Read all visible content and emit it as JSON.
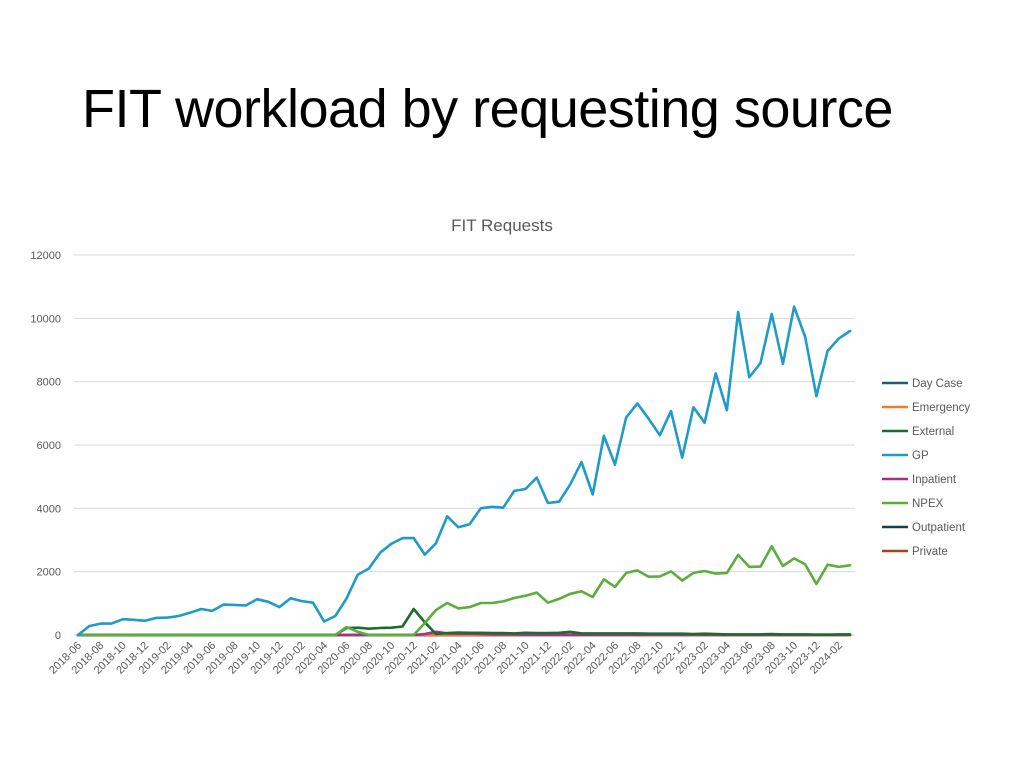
{
  "slide": {
    "title": "FIT workload by requesting source"
  },
  "chart_data": {
    "type": "line",
    "title": "FIT Requests",
    "xlabel": "",
    "ylabel": "",
    "ylim": [
      0,
      12000
    ],
    "yticks": [
      0,
      2000,
      4000,
      6000,
      8000,
      10000,
      12000
    ],
    "grid": true,
    "legend": "right",
    "x": [
      "2018-06",
      "2018-07",
      "2018-08",
      "2018-09",
      "2018-10",
      "2018-11",
      "2018-12",
      "2019-01",
      "2019-02",
      "2019-03",
      "2019-04",
      "2019-05",
      "2019-06",
      "2019-07",
      "2019-08",
      "2019-09",
      "2019-10",
      "2019-11",
      "2019-12",
      "2020-01",
      "2020-02",
      "2020-03",
      "2020-04",
      "2020-05",
      "2020-06",
      "2020-07",
      "2020-08",
      "2020-09",
      "2020-10",
      "2020-11",
      "2020-12",
      "2021-01",
      "2021-02",
      "2021-03",
      "2021-04",
      "2021-05",
      "2021-06",
      "2021-07",
      "2021-08",
      "2021-09",
      "2021-10",
      "2021-11",
      "2021-12",
      "2022-01",
      "2022-02",
      "2022-03",
      "2022-04",
      "2022-05",
      "2022-06",
      "2022-07",
      "2022-08",
      "2022-09",
      "2022-10",
      "2022-11",
      "2022-12",
      "2023-01",
      "2023-02",
      "2023-03",
      "2023-04",
      "2023-05",
      "2023-06",
      "2023-07",
      "2023-08",
      "2023-09",
      "2023-10",
      "2023-11",
      "2023-12",
      "2024-01",
      "2024-02",
      "2024-03"
    ],
    "xtick_labels": [
      "2018-06",
      "2018-08",
      "2018-10",
      "2018-12",
      "2019-02",
      "2019-04",
      "2019-06",
      "2019-08",
      "2019-10",
      "2019-12",
      "2020-02",
      "2020-04",
      "2020-06",
      "2020-08",
      "2020-10",
      "2020-12",
      "2021-02",
      "2021-04",
      "2021-06",
      "2021-08",
      "2021-10",
      "2021-12",
      "2022-02",
      "2022-04",
      "2022-06",
      "2022-08",
      "2022-10",
      "2022-12",
      "2023-02",
      "2023-04",
      "2023-06",
      "2023-08",
      "2023-10",
      "2023-12",
      "2024-02"
    ],
    "series": [
      {
        "name": "Day Case",
        "color": "#1f5c7a",
        "values": [
          0,
          0,
          0,
          0,
          0,
          0,
          0,
          0,
          0,
          0,
          0,
          0,
          0,
          0,
          0,
          0,
          0,
          0,
          0,
          0,
          0,
          0,
          0,
          0,
          0,
          0,
          0,
          0,
          0,
          0,
          0,
          0,
          0,
          0,
          0,
          0,
          0,
          0,
          0,
          0,
          0,
          0,
          0,
          0,
          0,
          0,
          0,
          0,
          0,
          0,
          0,
          0,
          0,
          0,
          0,
          0,
          0,
          0,
          0,
          0,
          0,
          0,
          0,
          0,
          0,
          0,
          0,
          0,
          0,
          0
        ]
      },
      {
        "name": "Emergency",
        "color": "#ed7d31",
        "values": [
          0,
          0,
          0,
          0,
          0,
          0,
          0,
          0,
          0,
          0,
          0,
          0,
          0,
          0,
          0,
          0,
          0,
          0,
          0,
          0,
          0,
          0,
          0,
          0,
          0,
          0,
          0,
          0,
          0,
          0,
          0,
          0,
          0,
          0,
          0,
          0,
          0,
          0,
          0,
          0,
          0,
          0,
          0,
          0,
          0,
          0,
          0,
          0,
          0,
          0,
          0,
          0,
          0,
          0,
          0,
          0,
          0,
          0,
          0,
          0,
          0,
          0,
          0,
          0,
          0,
          0,
          0,
          0,
          0,
          0
        ]
      },
      {
        "name": "External",
        "color": "#1e6b2e",
        "values": [
          0,
          0,
          0,
          0,
          0,
          0,
          0,
          0,
          0,
          0,
          0,
          0,
          0,
          0,
          0,
          0,
          0,
          0,
          0,
          0,
          0,
          0,
          0,
          0,
          220,
          230,
          200,
          220,
          230,
          270,
          820,
          400,
          30,
          60,
          80,
          70,
          70,
          60,
          60,
          50,
          70,
          60,
          60,
          70,
          100,
          50,
          50,
          50,
          50,
          50,
          50,
          40,
          40,
          40,
          40,
          30,
          40,
          30,
          20,
          20,
          20,
          20,
          30,
          20,
          20,
          20,
          10,
          10,
          20,
          20
        ]
      },
      {
        "name": "GP",
        "color": "#1f9bc9",
        "values": [
          0,
          280,
          360,
          360,
          500,
          480,
          450,
          540,
          550,
          600,
          700,
          820,
          760,
          960,
          950,
          930,
          1130,
          1050,
          880,
          1160,
          1070,
          1020,
          430,
          600,
          1150,
          1900,
          2100,
          2600,
          2880,
          3060,
          3060,
          2540,
          2900,
          3750,
          3400,
          3500,
          4000,
          4050,
          4020,
          4550,
          4610,
          4970,
          4170,
          4210,
          4760,
          5460,
          4440,
          6290,
          5380,
          6870,
          7310,
          6830,
          6310,
          7070,
          5600,
          7190,
          6700,
          8260,
          7100,
          10200,
          8140,
          8590,
          10140,
          8560,
          10370,
          9410,
          7540,
          8970,
          9360,
          9600
        ]
      },
      {
        "name": "Inpatient",
        "color": "#a0328c",
        "values": [
          0,
          0,
          0,
          0,
          0,
          0,
          0,
          0,
          0,
          0,
          0,
          0,
          0,
          0,
          0,
          0,
          0,
          0,
          0,
          0,
          0,
          0,
          0,
          0,
          0,
          0,
          0,
          0,
          0,
          0,
          0,
          30,
          100,
          50,
          40,
          40,
          30,
          20,
          20,
          20,
          10,
          10,
          10,
          10,
          10,
          10,
          10,
          10,
          10,
          10,
          10,
          10,
          10,
          10,
          10,
          10,
          10,
          10,
          10,
          10,
          10,
          10,
          10,
          10,
          10,
          10,
          10,
          10,
          10,
          10
        ]
      },
      {
        "name": "NPEX",
        "color": "#5bae3c",
        "values": [
          0,
          0,
          0,
          0,
          0,
          0,
          0,
          0,
          0,
          0,
          0,
          0,
          0,
          0,
          0,
          0,
          0,
          0,
          0,
          0,
          0,
          0,
          0,
          0,
          250,
          100,
          0,
          0,
          0,
          0,
          0,
          380,
          790,
          1010,
          840,
          880,
          1010,
          1010,
          1060,
          1170,
          1240,
          1340,
          1020,
          1140,
          1300,
          1380,
          1200,
          1760,
          1520,
          1960,
          2040,
          1840,
          1850,
          2010,
          1720,
          1960,
          2020,
          1940,
          1960,
          2530,
          2150,
          2160,
          2800,
          2180,
          2420,
          2230,
          1610,
          2220,
          2150,
          2200
        ]
      },
      {
        "name": "Outpatient",
        "color": "#173d52",
        "values": [
          0,
          0,
          0,
          0,
          0,
          0,
          0,
          0,
          0,
          0,
          0,
          0,
          0,
          0,
          0,
          0,
          0,
          0,
          0,
          0,
          0,
          0,
          0,
          0,
          0,
          0,
          0,
          0,
          0,
          0,
          0,
          0,
          0,
          0,
          0,
          0,
          0,
          0,
          0,
          0,
          0,
          0,
          0,
          0,
          0,
          0,
          0,
          0,
          0,
          0,
          0,
          0,
          0,
          0,
          0,
          0,
          0,
          0,
          0,
          0,
          0,
          0,
          0,
          0,
          0,
          0,
          0,
          0,
          0,
          0
        ]
      },
      {
        "name": "Private",
        "color": "#a8431a",
        "values": [
          0,
          0,
          0,
          0,
          0,
          0,
          0,
          0,
          0,
          0,
          0,
          0,
          0,
          0,
          0,
          0,
          0,
          0,
          0,
          0,
          0,
          0,
          0,
          0,
          0,
          0,
          0,
          0,
          0,
          0,
          0,
          0,
          0,
          0,
          0,
          0,
          0,
          0,
          0,
          0,
          0,
          0,
          0,
          0,
          0,
          0,
          0,
          0,
          0,
          0,
          0,
          0,
          0,
          0,
          0,
          0,
          0,
          0,
          0,
          0,
          0,
          0,
          0,
          0,
          0,
          0,
          0,
          0,
          0,
          0
        ]
      }
    ]
  }
}
